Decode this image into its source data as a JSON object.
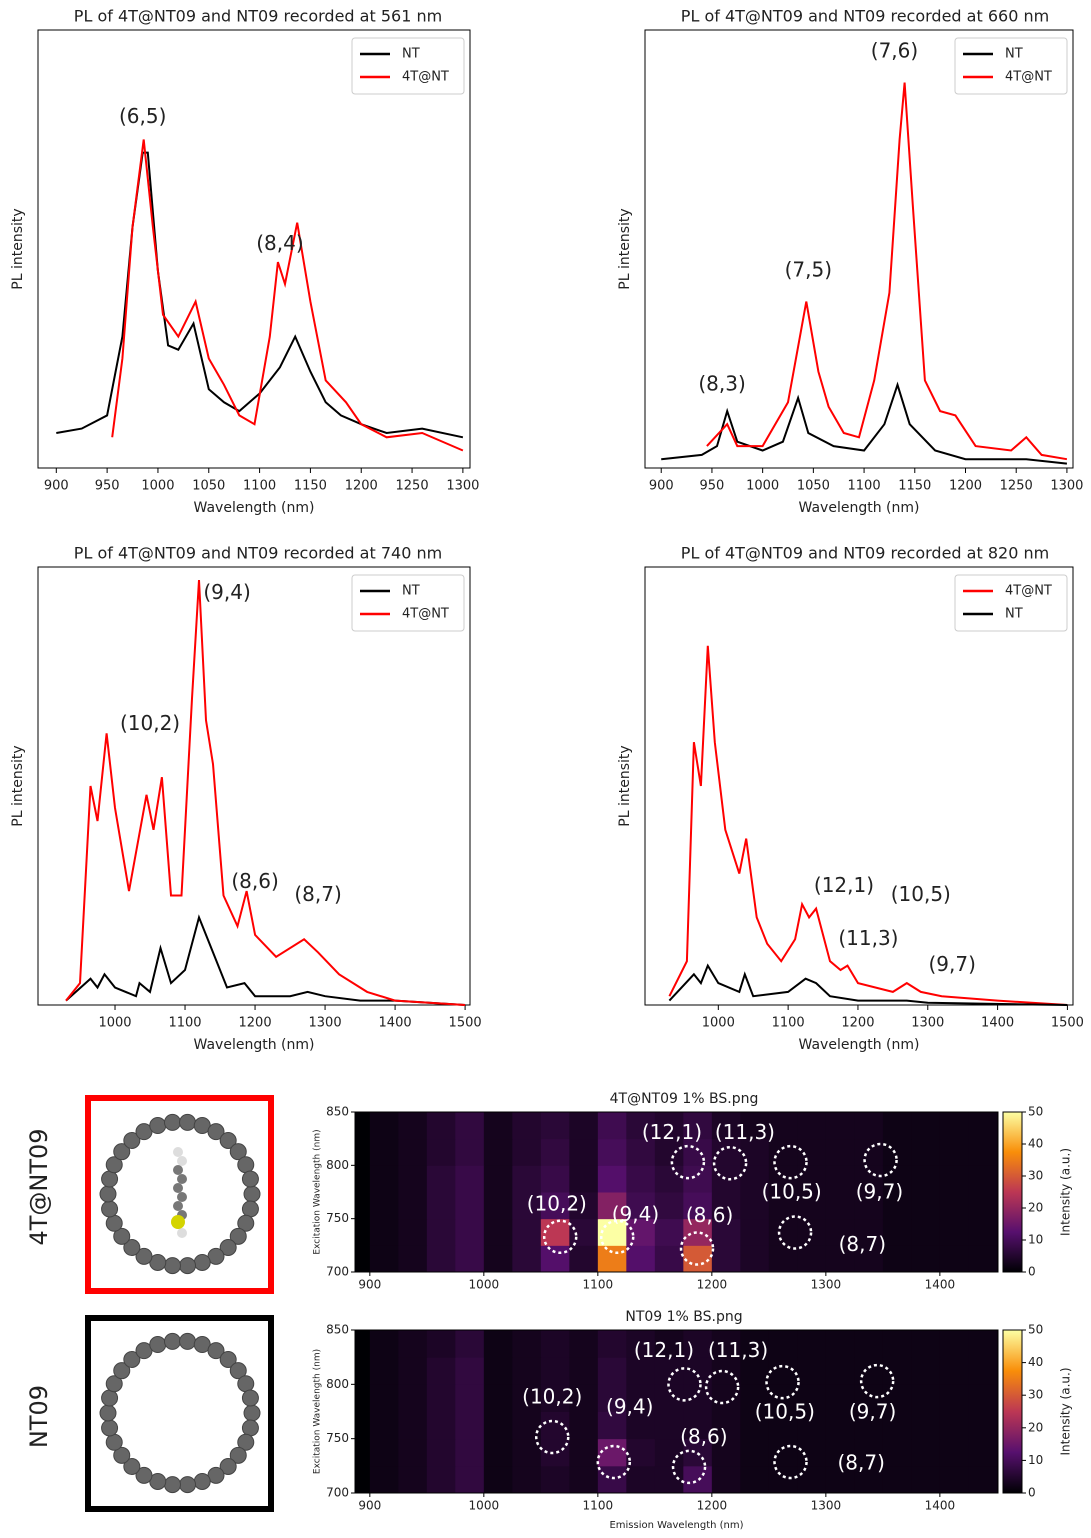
{
  "chart_data": [
    {
      "type": "line",
      "title": "PL of 4T@NT09 and NT09 recorded at 561 nm",
      "xlabel": "Wavelength (nm)",
      "ylabel": "PL intensity",
      "xlim": [
        882,
        1307
      ],
      "ylim": [
        0,
        1
      ],
      "xticks": [
        900,
        950,
        1000,
        1050,
        1100,
        1150,
        1200,
        1250,
        1300
      ],
      "legend": "upper right",
      "series": [
        {
          "name": "NT",
          "color": "#000000",
          "x": [
            900,
            925,
            950,
            965,
            975,
            985,
            990,
            1000,
            1010,
            1020,
            1035,
            1050,
            1065,
            1080,
            1100,
            1120,
            1135,
            1150,
            1165,
            1180,
            1200,
            1225,
            1260,
            1300
          ],
          "values": [
            0.08,
            0.09,
            0.12,
            0.3,
            0.55,
            0.72,
            0.72,
            0.45,
            0.28,
            0.27,
            0.33,
            0.18,
            0.15,
            0.13,
            0.17,
            0.23,
            0.3,
            0.22,
            0.15,
            0.12,
            0.1,
            0.08,
            0.09,
            0.07
          ]
        },
        {
          "name": "4T@NT",
          "color": "#ff0000",
          "x": [
            955,
            965,
            975,
            986,
            995,
            1005,
            1020,
            1037,
            1050,
            1065,
            1080,
            1095,
            1110,
            1118,
            1125,
            1137,
            1150,
            1165,
            1185,
            1200,
            1225,
            1260,
            1300
          ],
          "values": [
            0.07,
            0.25,
            0.55,
            0.75,
            0.55,
            0.35,
            0.3,
            0.38,
            0.25,
            0.19,
            0.12,
            0.1,
            0.3,
            0.47,
            0.42,
            0.56,
            0.38,
            0.2,
            0.15,
            0.1,
            0.07,
            0.08,
            0.04
          ]
        }
      ],
      "annotations": [
        {
          "text": "(6,5)",
          "x": 985,
          "y": 0.8
        },
        {
          "text": "(8,4)",
          "x": 1120,
          "y": 0.51
        }
      ]
    },
    {
      "type": "line",
      "title": "PL of 4T@NT09 and NT09 recorded at 660 nm",
      "xlabel": "Wavelength (nm)",
      "ylabel": "PL intensity",
      "xlim": [
        884,
        1306
      ],
      "ylim": [
        0,
        1
      ],
      "xticks": [
        900,
        950,
        1000,
        1050,
        1100,
        1150,
        1200,
        1250,
        1300
      ],
      "legend": "upper right",
      "series": [
        {
          "name": "NT",
          "color": "#000000",
          "x": [
            900,
            940,
            955,
            965,
            975,
            1000,
            1020,
            1035,
            1045,
            1070,
            1100,
            1120,
            1133,
            1145,
            1170,
            1200,
            1260,
            1300
          ],
          "values": [
            0.02,
            0.03,
            0.05,
            0.13,
            0.06,
            0.04,
            0.06,
            0.16,
            0.08,
            0.05,
            0.04,
            0.1,
            0.19,
            0.1,
            0.04,
            0.02,
            0.02,
            0.01
          ]
        },
        {
          "name": "4T@NT",
          "color": "#ff0000",
          "x": [
            945,
            965,
            975,
            1000,
            1025,
            1043,
            1055,
            1065,
            1080,
            1095,
            1110,
            1125,
            1135,
            1140,
            1148,
            1160,
            1175,
            1190,
            1210,
            1245,
            1260,
            1275,
            1300
          ],
          "values": [
            0.05,
            0.1,
            0.05,
            0.05,
            0.15,
            0.38,
            0.22,
            0.14,
            0.08,
            0.07,
            0.2,
            0.4,
            0.75,
            0.88,
            0.6,
            0.2,
            0.13,
            0.12,
            0.05,
            0.04,
            0.07,
            0.03,
            0.02
          ]
        }
      ],
      "annotations": [
        {
          "text": "(8,3)",
          "x": 960,
          "y": 0.19
        },
        {
          "text": "(7,5)",
          "x": 1045,
          "y": 0.45
        },
        {
          "text": "(7,6)",
          "x": 1130,
          "y": 0.95
        }
      ]
    },
    {
      "type": "line",
      "title": "PL of 4T@NT09 and NT09 recorded at 740 nm",
      "xlabel": "Wavelength (nm)",
      "ylabel": "PL intensity",
      "xlim": [
        890,
        1507
      ],
      "ylim": [
        0,
        1
      ],
      "xticks": [
        1000,
        1100,
        1200,
        1300,
        1400,
        1500
      ],
      "legend": "upper right",
      "series": [
        {
          "name": "NT",
          "color": "#000000",
          "x": [
            930,
            965,
            975,
            985,
            1000,
            1030,
            1035,
            1050,
            1065,
            1080,
            1100,
            1120,
            1140,
            1160,
            1185,
            1200,
            1250,
            1275,
            1300,
            1350,
            1400,
            1500
          ],
          "values": [
            0.01,
            0.06,
            0.04,
            0.07,
            0.04,
            0.02,
            0.05,
            0.03,
            0.13,
            0.05,
            0.08,
            0.2,
            0.12,
            0.04,
            0.05,
            0.02,
            0.02,
            0.03,
            0.02,
            0.01,
            0.01,
            0
          ]
        },
        {
          "name": "4T@NT",
          "color": "#ff0000",
          "x": [
            930,
            950,
            965,
            975,
            988,
            1000,
            1020,
            1045,
            1055,
            1067,
            1080,
            1095,
            1110,
            1120,
            1130,
            1140,
            1155,
            1175,
            1188,
            1200,
            1230,
            1270,
            1290,
            1320,
            1360,
            1400,
            1500
          ],
          "values": [
            0.01,
            0.05,
            0.5,
            0.42,
            0.62,
            0.45,
            0.26,
            0.48,
            0.4,
            0.52,
            0.25,
            0.25,
            0.7,
            0.97,
            0.65,
            0.55,
            0.25,
            0.18,
            0.26,
            0.16,
            0.11,
            0.15,
            0.12,
            0.07,
            0.03,
            0.01,
            0
          ]
        }
      ],
      "annotations": [
        {
          "text": "(9,4)",
          "x": 1160,
          "y": 0.94
        },
        {
          "text": "(10,2)",
          "x": 1050,
          "y": 0.64
        },
        {
          "text": "(8,6)",
          "x": 1200,
          "y": 0.28
        },
        {
          "text": "(8,7)",
          "x": 1290,
          "y": 0.25
        }
      ]
    },
    {
      "type": "line",
      "title": "PL of 4T@NT09 and NT09 recorded at 820 nm",
      "xlabel": "Wavelength (nm)",
      "ylabel": "PL intensity",
      "xlim": [
        895,
        1508
      ],
      "ylim": [
        0,
        1
      ],
      "xticks": [
        1000,
        1100,
        1200,
        1300,
        1400,
        1500
      ],
      "legend": "upper right",
      "series": [
        {
          "name": "4T@NT",
          "color": "#ff0000",
          "x": [
            930,
            955,
            965,
            975,
            985,
            995,
            1010,
            1030,
            1040,
            1055,
            1070,
            1090,
            1110,
            1120,
            1130,
            1140,
            1160,
            1175,
            1185,
            1200,
            1250,
            1270,
            1290,
            1320,
            1400,
            1500
          ],
          "values": [
            0.02,
            0.1,
            0.6,
            0.5,
            0.82,
            0.6,
            0.4,
            0.3,
            0.38,
            0.2,
            0.14,
            0.1,
            0.15,
            0.23,
            0.2,
            0.22,
            0.1,
            0.08,
            0.09,
            0.05,
            0.03,
            0.05,
            0.03,
            0.02,
            0.01,
            0
          ]
        },
        {
          "name": "NT",
          "color": "#000000",
          "x": [
            930,
            965,
            975,
            985,
            1000,
            1030,
            1038,
            1050,
            1100,
            1125,
            1140,
            1160,
            1200,
            1270,
            1300,
            1500
          ],
          "values": [
            0.01,
            0.07,
            0.05,
            0.09,
            0.05,
            0.03,
            0.07,
            0.02,
            0.03,
            0.06,
            0.05,
            0.02,
            0.01,
            0.01,
            0.005,
            0
          ]
        }
      ],
      "annotations": [
        {
          "text": "(12,1)",
          "x": 1180,
          "y": 0.27
        },
        {
          "text": "(11,3)",
          "x": 1215,
          "y": 0.15
        },
        {
          "text": "(10,5)",
          "x": 1290,
          "y": 0.25
        },
        {
          "text": "(9,7)",
          "x": 1335,
          "y": 0.09
        }
      ]
    },
    {
      "type": "heatmap",
      "title": "4T@NT09 1% BS.png",
      "row_label": "4T@NT09",
      "row_label_color": "#ff0000",
      "ylabel": "Excitation Wavelength (nm)",
      "xlim": [
        887,
        1451
      ],
      "ylim": [
        700,
        850
      ],
      "xticks": [
        900,
        1000,
        1100,
        1200,
        1300,
        1400
      ],
      "yticks": [
        700,
        750,
        800,
        850
      ],
      "x_bins": [
        900,
        925,
        950,
        975,
        1000,
        1025,
        1050,
        1075,
        1100,
        1125,
        1150,
        1175,
        1200,
        1225,
        1250,
        1275,
        1300,
        1325,
        1350,
        1375,
        1400,
        1425,
        1450
      ],
      "y_bins": [
        700,
        725,
        750,
        775,
        800,
        825,
        850
      ],
      "z": [
        [
          2,
          3,
          6,
          8,
          3,
          6,
          12,
          5,
          35,
          12,
          8,
          30,
          6,
          4,
          3,
          3,
          3,
          3,
          2,
          2,
          2,
          2
        ],
        [
          2,
          3,
          6,
          8,
          3,
          6,
          25,
          6,
          50,
          14,
          9,
          20,
          6,
          4,
          3,
          3,
          3,
          3,
          2,
          2,
          2,
          2
        ],
        [
          2,
          3,
          6,
          8,
          3,
          6,
          10,
          5,
          18,
          9,
          7,
          10,
          5,
          4,
          3,
          3,
          3,
          3,
          2,
          2,
          2,
          2
        ],
        [
          2,
          3,
          6,
          8,
          3,
          6,
          8,
          4,
          12,
          8,
          6,
          9,
          5,
          4,
          3,
          3,
          3,
          3,
          2,
          2,
          2,
          2
        ],
        [
          2,
          3,
          5,
          7,
          3,
          5,
          7,
          4,
          10,
          7,
          5,
          8,
          5,
          4,
          3,
          3,
          3,
          3,
          2,
          2,
          2,
          2
        ],
        [
          2,
          3,
          5,
          7,
          3,
          5,
          6,
          4,
          9,
          6,
          5,
          7,
          4,
          3,
          3,
          3,
          3,
          3,
          2,
          2,
          2,
          2
        ]
      ],
      "clim": [
        0,
        50
      ],
      "cticks": [
        0,
        10,
        20,
        30,
        40,
        50
      ],
      "colorbar_label": "Intensity (a.u.)",
      "markers": [
        {
          "x": 1067,
          "y": 733
        },
        {
          "x": 1117,
          "y": 733
        },
        {
          "x": 1187,
          "y": 722
        },
        {
          "x": 1179,
          "y": 803
        },
        {
          "x": 1216,
          "y": 802
        },
        {
          "x": 1269,
          "y": 803
        },
        {
          "x": 1348,
          "y": 805
        },
        {
          "x": 1273,
          "y": 737
        }
      ],
      "annotations": [
        {
          "text": "(10,2)",
          "x": 1064,
          "y": 763
        },
        {
          "text": "(9,4)",
          "x": 1133,
          "y": 753
        },
        {
          "text": "(8,6)",
          "x": 1198,
          "y": 752
        },
        {
          "text": "(12,1)",
          "x": 1165,
          "y": 830
        },
        {
          "text": "(11,3)",
          "x": 1229,
          "y": 830
        },
        {
          "text": "(10,5)",
          "x": 1270,
          "y": 774
        },
        {
          "text": "(9,7)",
          "x": 1347,
          "y": 774
        },
        {
          "text": "(8,7)",
          "x": 1332,
          "y": 725
        }
      ]
    },
    {
      "type": "heatmap",
      "title": "NT09 1% BS.png",
      "row_label": "NT09",
      "row_label_color": "#000000",
      "xlabel": "Emission Wavelength (nm)",
      "ylabel": "Excitation Wavelength (nm)",
      "xlim": [
        887,
        1451
      ],
      "ylim": [
        700,
        850
      ],
      "xticks": [
        900,
        1000,
        1100,
        1200,
        1300,
        1400
      ],
      "yticks": [
        700,
        750,
        800,
        850
      ],
      "x_bins": [
        900,
        925,
        950,
        975,
        1000,
        1025,
        1050,
        1075,
        1100,
        1125,
        1150,
        1175,
        1200,
        1225,
        1250,
        1275,
        1300,
        1325,
        1350,
        1375,
        1400,
        1425,
        1450
      ],
      "y_bins": [
        700,
        725,
        750,
        775,
        800,
        825,
        850
      ],
      "z": [
        [
          2,
          3,
          5,
          7,
          2,
          3,
          4,
          3,
          8,
          4,
          4,
          10,
          3,
          2,
          2,
          2,
          2,
          2,
          2,
          2,
          2,
          2
        ],
        [
          2,
          3,
          5,
          7,
          2,
          3,
          5,
          3,
          15,
          5,
          4,
          6,
          3,
          2,
          2,
          2,
          2,
          2,
          2,
          2,
          2,
          2
        ],
        [
          2,
          3,
          5,
          7,
          2,
          3,
          5,
          3,
          7,
          4,
          4,
          4,
          3,
          2,
          2,
          2,
          2,
          2,
          2,
          2,
          2,
          2
        ],
        [
          2,
          3,
          5,
          7,
          2,
          3,
          4,
          3,
          6,
          4,
          4,
          4,
          3,
          2,
          2,
          2,
          2,
          2,
          2,
          2,
          2,
          2
        ],
        [
          2,
          3,
          5,
          7,
          2,
          3,
          4,
          3,
          6,
          4,
          4,
          4,
          3,
          2,
          2,
          2,
          2,
          2,
          2,
          2,
          2,
          2
        ],
        [
          2,
          3,
          4,
          6,
          2,
          3,
          4,
          3,
          5,
          4,
          3,
          4,
          3,
          2,
          2,
          2,
          2,
          2,
          2,
          2,
          2,
          2
        ]
      ],
      "clim": [
        0,
        50
      ],
      "cticks": [
        0,
        10,
        20,
        30,
        40,
        50
      ],
      "colorbar_label": "Intensity (a.u.)",
      "markers": [
        {
          "x": 1060,
          "y": 751.5
        },
        {
          "x": 1114,
          "y": 728.5
        },
        {
          "x": 1180,
          "y": 724
        },
        {
          "x": 1176,
          "y": 800
        },
        {
          "x": 1209,
          "y": 797.5
        },
        {
          "x": 1262,
          "y": 802
        },
        {
          "x": 1345,
          "y": 803
        },
        {
          "x": 1269,
          "y": 728.5
        }
      ],
      "annotations": [
        {
          "text": "(10,2)",
          "x": 1060,
          "y": 787.4
        },
        {
          "text": "(9,4)",
          "x": 1128,
          "y": 778
        },
        {
          "text": "(8,6)",
          "x": 1193,
          "y": 750.6
        },
        {
          "text": "(12,1)",
          "x": 1158,
          "y": 830
        },
        {
          "text": "(11,3)",
          "x": 1223,
          "y": 830
        },
        {
          "text": "(10,5)",
          "x": 1264,
          "y": 773.6
        },
        {
          "text": "(9,7)",
          "x": 1341,
          "y": 773.6
        },
        {
          "text": "(8,7)",
          "x": 1331,
          "y": 726.7
        }
      ]
    }
  ]
}
